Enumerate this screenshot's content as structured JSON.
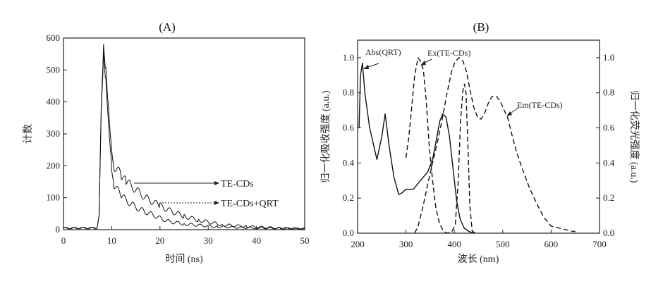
{
  "chart_data": [
    {
      "type": "line",
      "title": "(A)",
      "xlabel": "时间 (ns)",
      "ylabel": "计数",
      "xlim": [
        0,
        50
      ],
      "ylim": [
        0,
        600
      ],
      "xticks": [
        "0",
        "10",
        "20",
        "30",
        "40",
        "50"
      ],
      "yticks": [
        "0",
        "100",
        "200",
        "300",
        "400",
        "500",
        "600"
      ],
      "annotations": [
        "TE-CDs",
        "TE-CDs+QRT"
      ],
      "series": [
        {
          "name": "TE-CDs",
          "style": "solid",
          "x": [
            0,
            7,
            7.4,
            7.8,
            8.3,
            8.8,
            9.3,
            10,
            10.5,
            12,
            13,
            15,
            17,
            20,
            22,
            25,
            28,
            33,
            38,
            45,
            50
          ],
          "y": [
            5,
            5,
            40,
            350,
            560,
            500,
            400,
            260,
            200,
            170,
            150,
            125,
            100,
            75,
            60,
            42,
            30,
            15,
            10,
            5,
            3
          ]
        },
        {
          "name": "TE-CDs+QRT",
          "style": "solid",
          "x": [
            0,
            7,
            7.4,
            7.8,
            8.3,
            8.8,
            9.3,
            10,
            10.5,
            12,
            14,
            16,
            18,
            20,
            22,
            25,
            27,
            32,
            40,
            50
          ],
          "y": [
            5,
            5,
            40,
            350,
            555,
            480,
            360,
            200,
            140,
            105,
            80,
            62,
            50,
            36,
            25,
            18,
            15,
            9,
            5,
            3
          ]
        }
      ]
    },
    {
      "type": "line",
      "title": "(B)",
      "xlabel": "波长 (nm)",
      "ylabel": "归一化吸收强度 (a.u.)",
      "ylabel_right": "归一化荧光强度 (a.u.)",
      "xlim": [
        200,
        700
      ],
      "ylim": [
        0,
        1.1
      ],
      "xticks": [
        "200",
        "300",
        "400",
        "500",
        "600",
        "700"
      ],
      "yticks": [
        "0.0",
        "0.2",
        "0.4",
        "0.6",
        "0.8",
        "1.0"
      ],
      "yticks_right": [
        "0.0",
        "0.2",
        "0.4",
        "0.6",
        "0.8",
        "1.0"
      ],
      "annotations": [
        "Abs(QRT)",
        "Ex(TE-CDs)",
        "Em(TE-CDs)"
      ],
      "series": [
        {
          "name": "Abs(QRT)",
          "style": "solid",
          "x": [
            203,
            206,
            210,
            215,
            225,
            240,
            250,
            257,
            265,
            275,
            285,
            292,
            300,
            315,
            330,
            345,
            355,
            362,
            370,
            376,
            383,
            390,
            398,
            405,
            412,
            420,
            430,
            440
          ],
          "y": [
            0.6,
            0.9,
            0.97,
            0.8,
            0.6,
            0.42,
            0.55,
            0.68,
            0.5,
            0.32,
            0.22,
            0.23,
            0.25,
            0.25,
            0.3,
            0.35,
            0.42,
            0.52,
            0.64,
            0.68,
            0.66,
            0.55,
            0.35,
            0.18,
            0.08,
            0.03,
            0.01,
            0
          ]
        },
        {
          "name": "Ex(TE-CDs)",
          "style": "dashed",
          "x": [
            300,
            306,
            312,
            318,
            325,
            330,
            336,
            342,
            348,
            355,
            362,
            370,
            378,
            385,
            395,
            402,
            408,
            413,
            418,
            421,
            424,
            428,
            432,
            437,
            445
          ],
          "y": [
            0.43,
            0.55,
            0.72,
            0.9,
            1.0,
            0.98,
            0.93,
            0.75,
            0.5,
            0.3,
            0.14,
            0.05,
            0.01,
            0,
            0.01,
            0.05,
            0.3,
            0.65,
            0.82,
            0.85,
            0.8,
            0.5,
            0.15,
            0.01,
            0
          ]
        },
        {
          "name": "Em(TE-CDs)",
          "style": "dashed",
          "x": [
            318,
            325,
            335,
            345,
            355,
            365,
            375,
            385,
            395,
            402,
            410,
            418,
            425,
            432,
            440,
            448,
            455,
            462,
            470,
            478,
            487,
            495,
            503,
            510,
            520,
            530,
            540,
            555,
            570,
            585,
            600,
            615,
            630,
            645,
            650
          ],
          "y": [
            0,
            0.04,
            0.15,
            0.28,
            0.4,
            0.52,
            0.65,
            0.8,
            0.93,
            0.98,
            1.0,
            0.98,
            0.92,
            0.82,
            0.72,
            0.66,
            0.65,
            0.68,
            0.74,
            0.78,
            0.78,
            0.75,
            0.7,
            0.66,
            0.55,
            0.45,
            0.37,
            0.26,
            0.17,
            0.09,
            0.04,
            0.03,
            0.02,
            0.01,
            0.01
          ]
        }
      ]
    }
  ]
}
